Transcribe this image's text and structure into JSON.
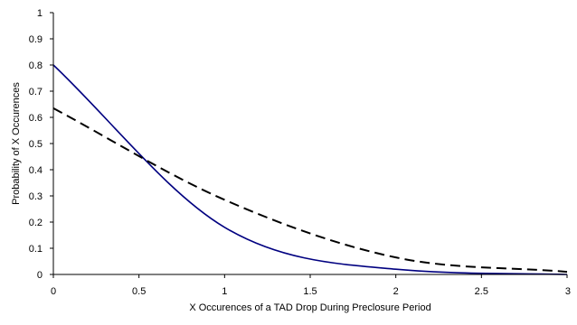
{
  "chart_data": {
    "type": "line",
    "title": "",
    "xlabel": "X Occurences of a TAD Drop During Preclosure Period",
    "ylabel": "Probability of X Occurences",
    "xlim": [
      0,
      3
    ],
    "ylim": [
      0,
      1
    ],
    "xticks": [
      0,
      0.5,
      1,
      1.5,
      2,
      2.5,
      3
    ],
    "xtick_labels": [
      "0",
      "0.5",
      "1",
      "1.5",
      "2",
      "2.5",
      "3"
    ],
    "yticks": [
      0,
      0.1,
      0.2,
      0.3,
      0.4,
      0.5,
      0.6,
      0.7,
      0.8,
      0.9,
      1
    ],
    "ytick_labels": [
      "0",
      "0.1",
      "0.2",
      "0.3",
      "0.4",
      "0.5",
      "0.6",
      "0.7",
      "0.8",
      "0.9",
      "1"
    ],
    "grid": false,
    "legend": "none",
    "series": [
      {
        "style": "solid",
        "color": "#000080",
        "x": [
          0,
          1,
          2,
          3
        ],
        "y": [
          0.8,
          0.18,
          0.02,
          0.0
        ]
      },
      {
        "style": "dashed",
        "color": "#000000",
        "x": [
          0,
          1,
          2,
          3
        ],
        "y": [
          0.635,
          0.285,
          0.065,
          0.01
        ]
      }
    ]
  }
}
